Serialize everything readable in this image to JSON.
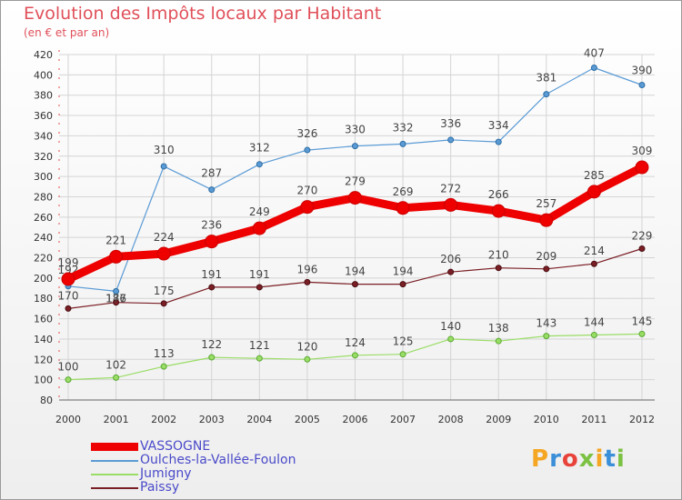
{
  "title": "Evolution des Impôts locaux par Habitant",
  "subtitle": "(en € et par an)",
  "logo": {
    "text": "Proxiti",
    "colors": [
      "#f5a623",
      "#3b8fd8",
      "#e8433a",
      "#7cc242",
      "#f5a623",
      "#3b8fd8",
      "#7cc242"
    ]
  },
  "chart_data": {
    "type": "line",
    "title": "Evolution des Impôts locaux par Habitant",
    "ylabel": "(en € et par an)",
    "xlabel": "",
    "x": [
      "2000",
      "2001",
      "2002",
      "2003",
      "2004",
      "2005",
      "2006",
      "2007",
      "2008",
      "2009",
      "2010",
      "2011",
      "2012"
    ],
    "ylim": [
      80,
      420
    ],
    "yticks": [
      "80",
      "100",
      "120",
      "140",
      "160",
      "180",
      "200",
      "220",
      "240",
      "260",
      "280",
      "300",
      "320",
      "340",
      "360",
      "380",
      "400",
      "420"
    ],
    "series": [
      {
        "name": "VASSOGNE",
        "color": "#ee0000",
        "values": [
          199,
          221,
          224,
          236,
          249,
          270,
          279,
          269,
          272,
          266,
          257,
          285,
          309
        ]
      },
      {
        "name": "Oulches-la-Vallée-Foulon",
        "color": "#5b9bd5",
        "values": [
          192,
          187,
          310,
          287,
          312,
          326,
          330,
          332,
          336,
          334,
          381,
          407,
          390
        ]
      },
      {
        "name": "Jumigny",
        "color": "#99dd66",
        "values": [
          100,
          102,
          113,
          122,
          121,
          120,
          124,
          125,
          140,
          138,
          143,
          144,
          145
        ]
      },
      {
        "name": "Paissy",
        "color": "#7a1f25",
        "values": [
          170,
          176,
          175,
          191,
          191,
          196,
          194,
          194,
          206,
          210,
          209,
          214,
          229
        ]
      }
    ],
    "grid": true,
    "legend": "bottom-left"
  }
}
